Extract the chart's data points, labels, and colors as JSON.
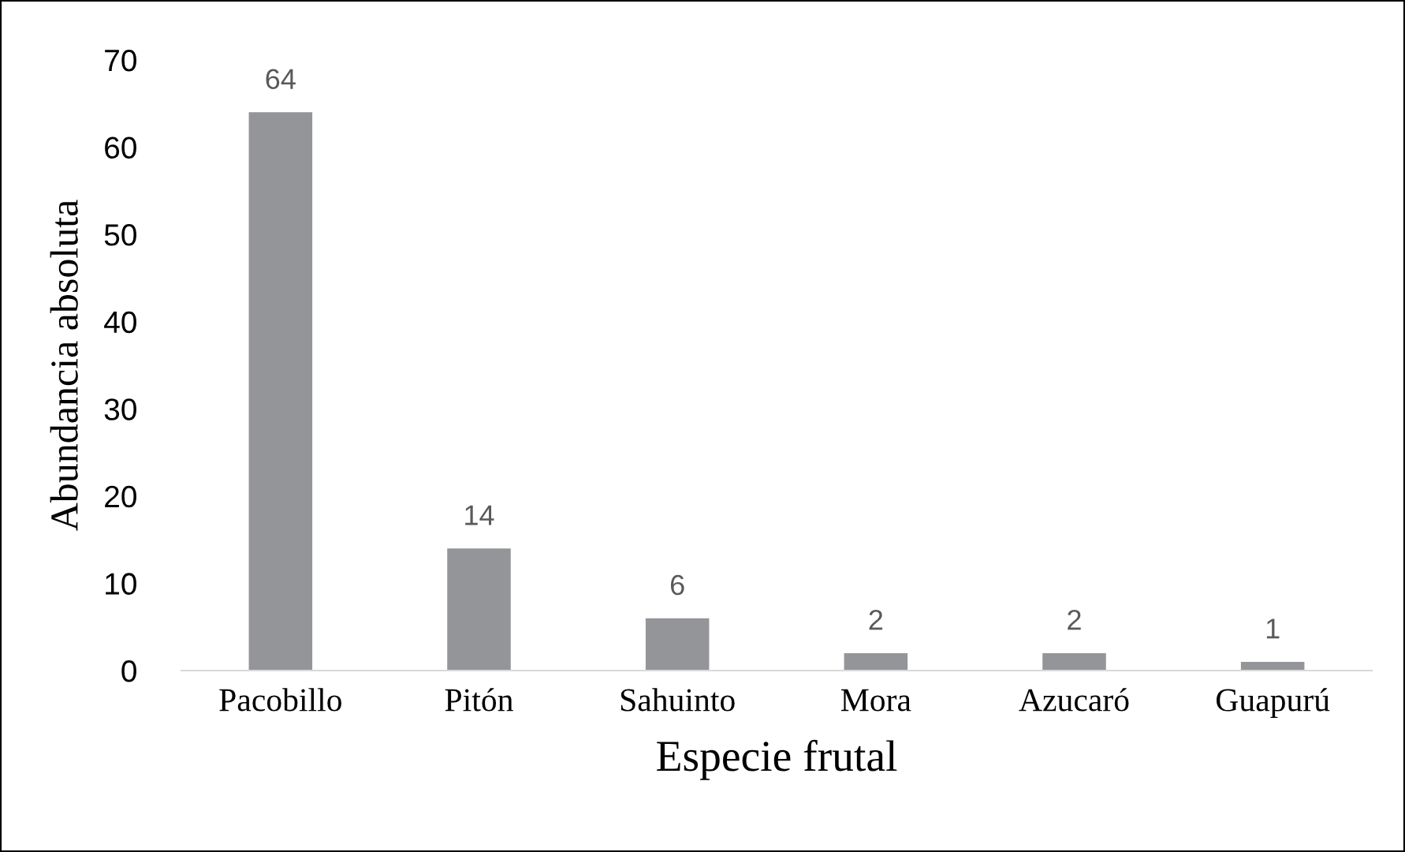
{
  "chart_data": {
    "type": "bar",
    "xlabel": "Especie frutal",
    "ylabel": "Abundancia absoluta",
    "categories": [
      "Pacobillo",
      "Pitón",
      "Sahuinto",
      "Mora",
      "Azucaró",
      "Guapurú"
    ],
    "values": [
      64,
      14,
      6,
      2,
      2,
      1
    ],
    "color": "#939598",
    "ylim": [
      0,
      70
    ],
    "yticks": [
      0,
      10,
      20,
      30,
      40,
      50,
      60,
      70
    ],
    "grid": false,
    "data_labels": true
  }
}
